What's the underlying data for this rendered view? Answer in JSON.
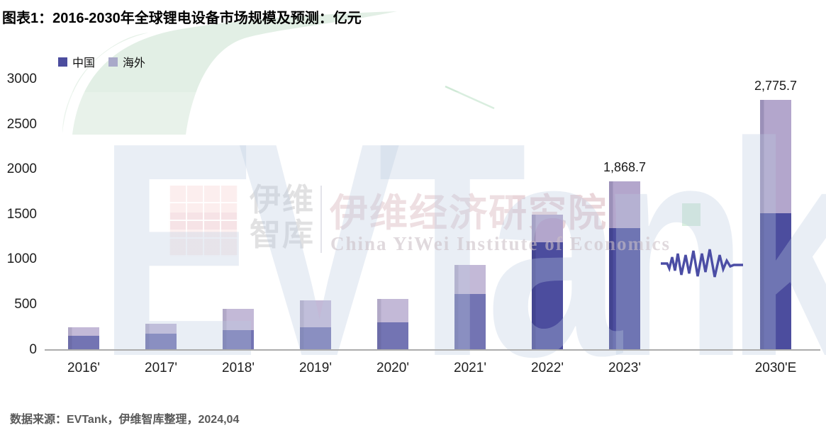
{
  "title": "图表1：2016-2030年全球锂电设备市场规模及预测：亿元",
  "source": "数据来源：EVTank，伊维智库整理，2024,04",
  "legend": [
    {
      "label": "中国",
      "color": "#4C4D9E"
    },
    {
      "label": "海外",
      "color": "#A9A9C9"
    }
  ],
  "watermark": {
    "big_text": "EVTank",
    "logo_line1": "伊维",
    "logo_line2": "智库",
    "cn_name": "伊维经济研究院",
    "en_name": "China YiWei Institute of Economics"
  },
  "colors": {
    "china_bar": "#4C4D9E",
    "overseas_bar": "#B3A6CC",
    "axis_line": "#ACACAC",
    "break_mark": "#4B4DA5",
    "tick_text": "#202020",
    "annotation_text": "#1a1a1a",
    "green_swoosh": "#E2EFE5"
  },
  "chart_data": {
    "type": "bar",
    "stacked": true,
    "title": "图表1：2016-2030年全球锂电设备市场规模及预测：亿元",
    "unit": "亿元",
    "categories": [
      "2016'",
      "2017'",
      "2018'",
      "2019'",
      "2020'",
      "2021'",
      "2022'",
      "2023'",
      "2030'E"
    ],
    "series": [
      {
        "name": "中国",
        "color": "#4C4D9E",
        "values": [
          155,
          180,
          215,
          250,
          300,
          620,
          1195,
          1350,
          1510
        ]
      },
      {
        "name": "海外",
        "color": "#B3A6CC",
        "values": [
          95,
          105,
          240,
          295,
          260,
          320,
          305,
          518.7,
          1265.7
        ]
      }
    ],
    "totals_labeled": [
      {
        "category": "2023'",
        "label": "1,868.7"
      },
      {
        "category": "2030'E",
        "label": "2,775.7"
      }
    ],
    "ylabel": "",
    "xlabel": "",
    "ylim": [
      0,
      3000
    ],
    "ytick_step": 500,
    "yticks": [
      "0",
      "500",
      "1000",
      "1500",
      "2000",
      "2500",
      "3000"
    ],
    "grid": false,
    "legend_position": "top-left",
    "axis_break_between": [
      "2023'",
      "2030'E"
    ]
  }
}
